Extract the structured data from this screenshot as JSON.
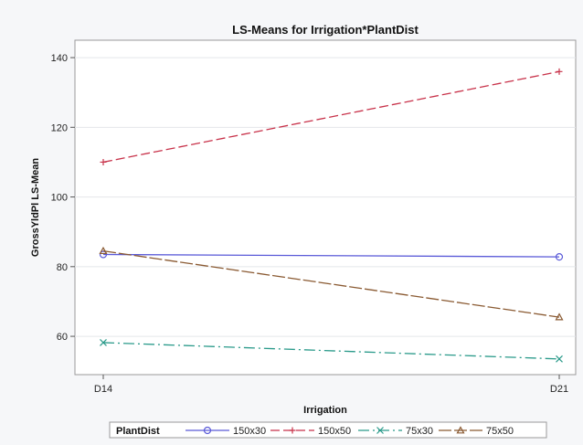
{
  "chart_data": {
    "type": "line",
    "title": "LS-Means for Irrigation*PlantDist",
    "xlabel": "Irrigation",
    "ylabel": "GrossYldPl LS-Mean",
    "categories": [
      "D14",
      "D21"
    ],
    "ylim": [
      49,
      145
    ],
    "yticks": [
      60,
      80,
      100,
      120,
      140
    ],
    "grid": true,
    "legend": {
      "title": "PlantDist",
      "placement": "bottom"
    },
    "series": [
      {
        "name": "150x30",
        "values": [
          83.5,
          82.8
        ],
        "color": "#5a5ad8",
        "marker": "circle",
        "dash": ""
      },
      {
        "name": "150x50",
        "values": [
          110,
          136
        ],
        "color": "#c8324a",
        "marker": "plus",
        "dash": "10,4"
      },
      {
        "name": "75x30",
        "values": [
          58.2,
          53.5
        ],
        "color": "#2a9a8a",
        "marker": "x",
        "dash": "12,4,2,4"
      },
      {
        "name": "75x50",
        "values": [
          84.5,
          65.5
        ],
        "color": "#8a5a32",
        "marker": "triangle",
        "dash": "14,3"
      }
    ]
  }
}
